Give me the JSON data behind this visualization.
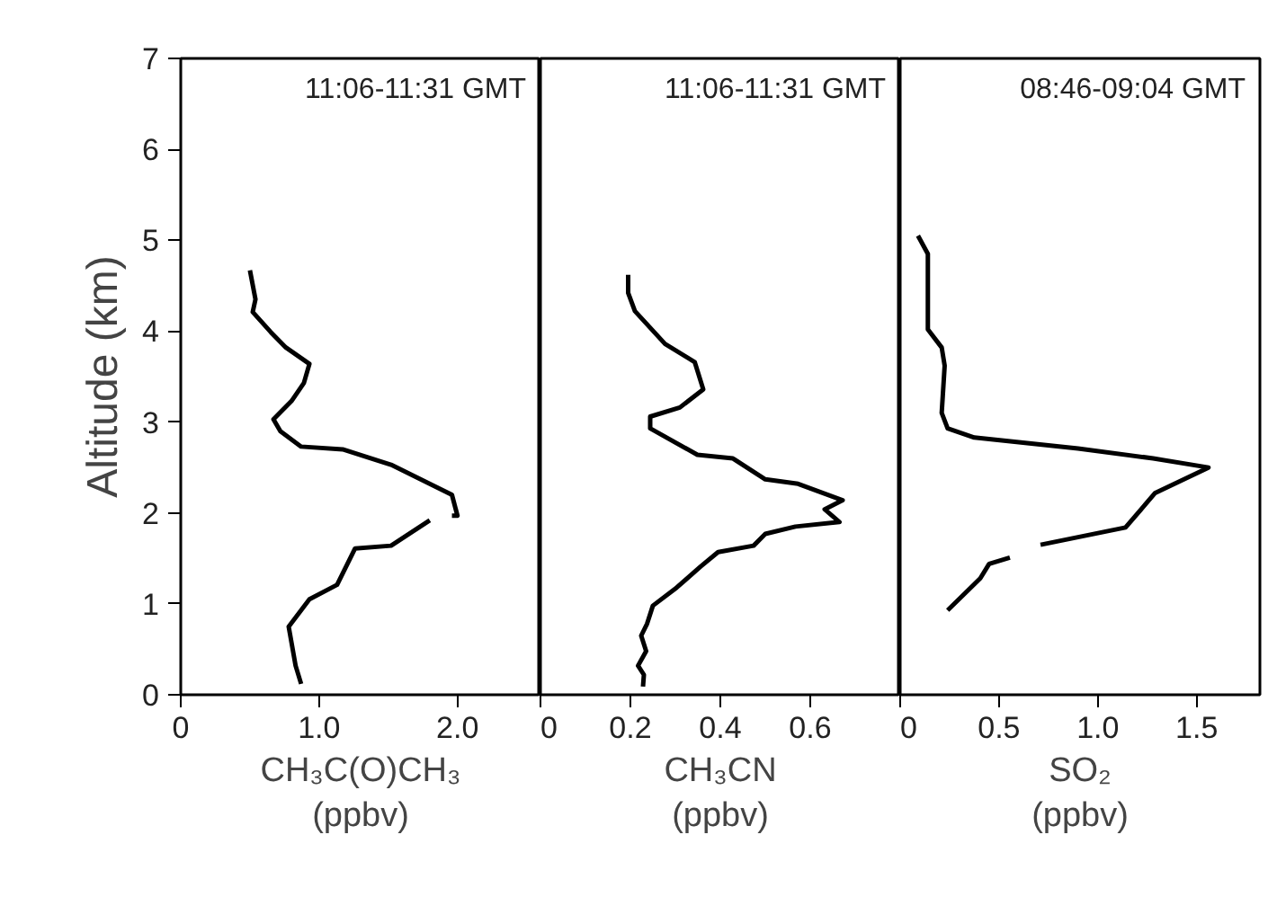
{
  "chart_data": [
    {
      "type": "line",
      "ylabel": "Altitude (km)",
      "xlabel": "CH₃C(O)CH₃\n(ppbv)",
      "annotations": [
        "11:06-11:31 GMT"
      ],
      "xlim": [
        0,
        2.6
      ],
      "xticks": [
        0,
        {
          "value": 1,
          "label": "1.0"
        },
        {
          "value": 2,
          "label": "2.0"
        }
      ],
      "ylim": [
        0,
        7
      ],
      "yticks": [
        0,
        1,
        2,
        3,
        4,
        5,
        6,
        7
      ],
      "series": [
        {
          "color": "#000000",
          "x": [
            0.5,
            0.54,
            0.52,
            0.65,
            0.76,
            0.93,
            0.89,
            0.8,
            0.67,
            0.72,
            0.87,
            1.17,
            1.52,
            1.96,
            2.0,
            1.96,
            null,
            1.8,
            1.52,
            1.26,
            1.13,
            0.93,
            0.78,
            0.83,
            0.87
          ],
          "values": [
            4.67,
            4.35,
            4.21,
            3.99,
            3.82,
            3.64,
            3.43,
            3.23,
            3.03,
            2.9,
            2.73,
            2.7,
            2.53,
            2.2,
            1.97,
            1.97,
            null,
            1.92,
            1.64,
            1.61,
            1.21,
            1.05,
            0.75,
            0.32,
            0.12
          ]
        }
      ]
    },
    {
      "type": "line",
      "xlabel": "CH₃CN\n(ppbv)",
      "annotations": [
        "11:06-11:31 GMT"
      ],
      "xlim": [
        0,
        0.8
      ],
      "xticks": [
        0,
        0.2,
        0.4,
        0.6,
        {
          "value": 0.8,
          "label": null
        }
      ],
      "ylim": [
        0,
        7
      ],
      "yticks": [
        0,
        1,
        2,
        3,
        4,
        5,
        6,
        7
      ],
      "tick_labels": "x",
      "series": [
        {
          "color": "#000000",
          "x": [
            0.195,
            0.195,
            0.21,
            0.277,
            0.343,
            0.362,
            0.31,
            0.244,
            0.244,
            0.349,
            0.428,
            0.5,
            0.573,
            0.672,
            0.632,
            0.665,
            0.567,
            0.5,
            0.474,
            0.395,
            0.356,
            0.303,
            0.25,
            0.237,
            0.224,
            0.235,
            0.217,
            0.23,
            0.228
          ],
          "values": [
            4.62,
            4.42,
            4.22,
            3.86,
            3.66,
            3.36,
            3.16,
            3.06,
            2.93,
            2.64,
            2.6,
            2.37,
            2.32,
            2.14,
            2.04,
            1.9,
            1.85,
            1.77,
            1.64,
            1.57,
            1.41,
            1.18,
            0.98,
            0.78,
            0.65,
            0.48,
            0.32,
            0.22,
            0.09
          ]
        }
      ]
    },
    {
      "type": "line",
      "xlabel": "SO₂\n(ppbv)",
      "annotations": [
        "08:46-09:04 GMT"
      ],
      "xlim": [
        0,
        1.82
      ],
      "xticks": [
        0,
        0.5,
        {
          "value": 1,
          "label": "1.0"
        },
        1.5
      ],
      "ylim": [
        0,
        7
      ],
      "yticks": [
        0,
        1,
        2,
        3,
        4,
        5,
        6,
        7
      ],
      "tick_labels": "x",
      "series": [
        {
          "color": "#000000",
          "x": [
            0.09,
            0.14,
            0.14,
            0.21,
            0.225,
            0.21,
            0.24,
            0.375,
            0.9,
            1.28,
            1.56,
            1.29,
            1.14,
            0.71,
            null,
            0.555,
            0.45,
            0.405,
            0.24
          ],
          "values": [
            5.05,
            4.85,
            4.02,
            3.82,
            3.62,
            3.1,
            2.93,
            2.83,
            2.71,
            2.6,
            2.5,
            2.22,
            1.84,
            1.65,
            null,
            1.51,
            1.44,
            1.28,
            0.93
          ]
        }
      ]
    }
  ]
}
